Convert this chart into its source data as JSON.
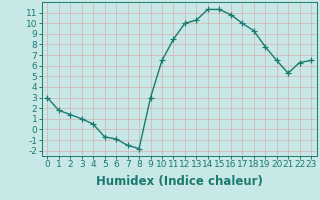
{
  "x": [
    0,
    1,
    2,
    3,
    4,
    5,
    6,
    7,
    8,
    9,
    10,
    11,
    12,
    13,
    14,
    15,
    16,
    17,
    18,
    19,
    20,
    21,
    22,
    23
  ],
  "y": [
    3.0,
    1.8,
    1.4,
    1.0,
    0.5,
    -0.7,
    -0.9,
    -1.5,
    -1.8,
    3.0,
    6.5,
    8.5,
    10.0,
    10.3,
    11.3,
    11.3,
    10.8,
    10.0,
    9.3,
    7.8,
    6.5,
    5.3,
    6.3,
    6.5
  ],
  "line_color": "#1a7a6e",
  "marker": "+",
  "marker_size": 4,
  "line_width": 1.0,
  "bg_color": "#c8e8e8",
  "grid_color": "#d4b8b8",
  "xlabel": "Humidex (Indice chaleur)",
  "xlim": [
    -0.5,
    23.5
  ],
  "ylim": [
    -2.5,
    12.0
  ],
  "yticks": [
    -2,
    -1,
    0,
    1,
    2,
    3,
    4,
    5,
    6,
    7,
    8,
    9,
    10,
    11
  ],
  "xticks": [
    0,
    1,
    2,
    3,
    4,
    5,
    6,
    7,
    8,
    9,
    10,
    11,
    12,
    13,
    14,
    15,
    16,
    17,
    18,
    19,
    20,
    21,
    22,
    23
  ],
  "tick_label_size": 6.5,
  "xlabel_size": 8.5
}
